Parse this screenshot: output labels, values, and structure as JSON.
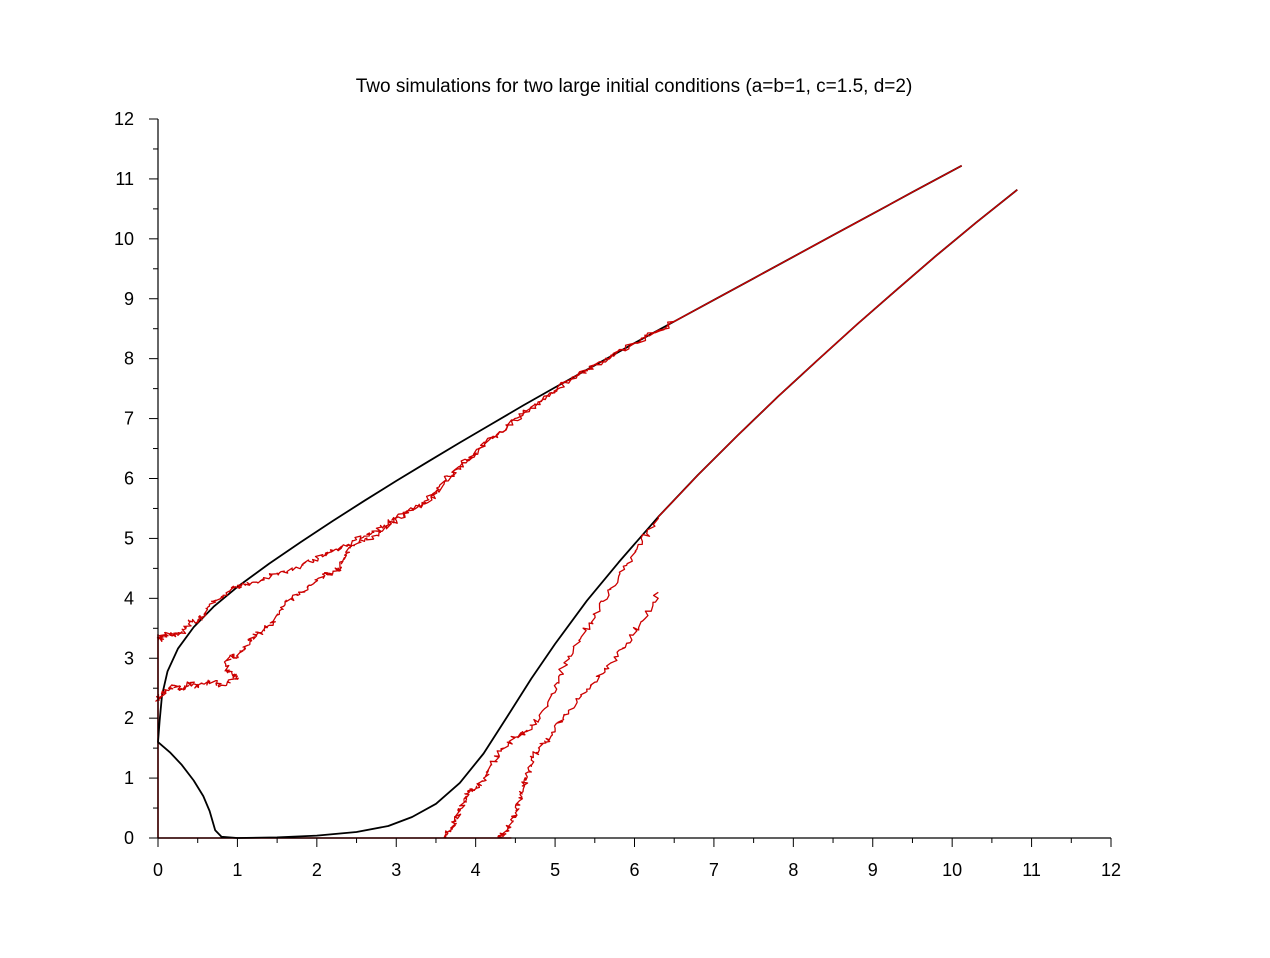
{
  "chart_data": {
    "type": "line",
    "title": "Two simulations for two  large initial conditions (a=b=1, c=1.5, d=2)",
    "xlabel": "",
    "ylabel": "",
    "xlim": [
      0,
      12
    ],
    "ylim": [
      0,
      12
    ],
    "x_ticks": [
      "0",
      "1",
      "2",
      "3",
      "4",
      "5",
      "6",
      "7",
      "8",
      "9",
      "10",
      "11",
      "12"
    ],
    "y_ticks": [
      "0",
      "1",
      "2",
      "3",
      "4",
      "5",
      "6",
      "7",
      "8",
      "9",
      "10",
      "11",
      "12"
    ],
    "grid": false,
    "legend": "none",
    "colors": {
      "deterministic": "#000000",
      "stochastic": "#cc0000"
    },
    "series": [
      {
        "kind": "deterministic",
        "x": [
          10.12,
          9.5,
          9.0,
          8.5,
          8.0,
          7.5,
          7.0,
          6.5,
          6.0,
          5.5,
          5.0,
          4.6,
          4.2,
          3.8,
          3.4,
          3.0,
          2.6,
          2.2,
          1.8,
          1.4,
          1.0,
          0.7,
          0.45,
          0.25,
          0.12,
          0.05,
          0.02,
          0.0,
          0.15,
          0.3,
          0.45,
          0.57,
          0.65,
          0.72,
          0.8,
          1.0
        ],
        "y": [
          11.22,
          10.78,
          10.42,
          10.06,
          9.7,
          9.34,
          8.98,
          8.62,
          8.26,
          7.89,
          7.52,
          7.22,
          6.91,
          6.6,
          6.28,
          5.96,
          5.63,
          5.29,
          4.94,
          4.58,
          4.19,
          3.86,
          3.52,
          3.16,
          2.78,
          2.38,
          1.95,
          1.6,
          1.43,
          1.22,
          0.96,
          0.7,
          0.45,
          0.13,
          0.02,
          0.0
        ]
      },
      {
        "kind": "deterministic",
        "x": [
          10.82,
          10.3,
          9.8,
          9.3,
          8.8,
          8.3,
          7.8,
          7.3,
          6.8,
          6.3,
          5.8,
          5.4,
          5.0,
          4.7,
          4.4,
          4.1,
          3.8,
          3.5,
          3.2,
          2.9,
          2.5,
          2.0,
          1.5,
          1.0
        ],
        "y": [
          10.82,
          10.27,
          9.72,
          9.15,
          8.57,
          7.97,
          7.36,
          6.72,
          6.06,
          5.36,
          4.6,
          3.96,
          3.24,
          2.66,
          2.03,
          1.41,
          0.92,
          0.57,
          0.35,
          0.2,
          0.1,
          0.04,
          0.01,
          0.0
        ]
      },
      {
        "kind": "stochastic",
        "x": [
          10.12,
          9.5,
          9.0,
          8.5,
          8.0,
          7.5,
          7.0,
          6.5,
          6.0,
          5.5,
          5.2,
          4.9,
          4.6,
          4.3,
          4.05,
          3.8,
          3.6,
          3.4,
          3.2,
          3.0,
          2.8,
          2.6,
          2.4,
          2.25,
          2.1,
          1.9,
          1.7,
          1.5,
          1.3,
          1.1,
          0.95,
          0.82,
          0.7,
          0.6,
          0.5,
          0.4,
          0.3,
          0.2,
          0.1,
          0.05,
          0.0
        ],
        "y": [
          11.22,
          10.78,
          10.42,
          10.06,
          9.7,
          9.34,
          8.98,
          8.62,
          8.26,
          7.9,
          7.65,
          7.38,
          7.08,
          6.78,
          6.5,
          6.2,
          5.95,
          5.65,
          5.5,
          5.3,
          5.1,
          4.95,
          4.9,
          4.82,
          4.72,
          4.62,
          4.48,
          4.42,
          4.3,
          4.22,
          4.2,
          4.05,
          3.95,
          3.72,
          3.62,
          3.6,
          3.42,
          3.38,
          3.4,
          3.35,
          3.3
        ]
      },
      {
        "kind": "stochastic",
        "x": [
          6.5,
          6.0,
          5.5,
          5.2,
          4.9,
          4.6,
          4.3,
          4.05,
          3.8,
          3.6,
          3.4,
          3.2,
          3.0,
          2.85,
          2.7,
          2.5,
          2.35,
          2.3,
          2.2,
          2.1,
          1.9,
          1.75,
          1.6,
          1.5,
          1.4,
          1.3,
          1.2,
          1.1,
          1.0,
          0.9,
          0.85,
          0.95,
          1.0,
          0.8,
          0.65,
          0.5,
          0.4,
          0.3,
          0.2,
          0.1,
          0.05,
          0.0
        ],
        "y": [
          8.62,
          8.26,
          7.9,
          7.65,
          7.38,
          7.08,
          6.78,
          6.5,
          6.2,
          5.9,
          5.6,
          5.48,
          5.35,
          5.22,
          5.1,
          4.98,
          4.72,
          4.5,
          4.42,
          4.38,
          4.22,
          4.05,
          3.95,
          3.72,
          3.55,
          3.42,
          3.35,
          3.2,
          3.05,
          3.02,
          2.8,
          2.72,
          2.65,
          2.55,
          2.62,
          2.52,
          2.58,
          2.48,
          2.55,
          2.45,
          2.38,
          2.3
        ]
      },
      {
        "kind": "stochastic",
        "x": [
          10.82,
          10.3,
          9.8,
          9.3,
          8.8,
          8.3,
          7.8,
          7.3,
          6.8,
          6.3,
          6.1,
          5.9,
          5.7,
          5.5,
          5.3,
          5.1,
          4.95,
          4.8,
          4.65,
          4.5,
          4.35,
          4.2,
          4.1,
          4.0,
          3.9,
          3.85,
          3.8,
          3.75,
          3.7,
          3.65,
          3.6
        ],
        "y": [
          10.82,
          10.27,
          9.72,
          9.15,
          8.57,
          7.97,
          7.36,
          6.72,
          6.06,
          5.36,
          4.95,
          4.55,
          4.15,
          3.72,
          3.3,
          2.85,
          2.4,
          1.98,
          1.78,
          1.68,
          1.5,
          1.22,
          0.95,
          0.82,
          0.78,
          0.62,
          0.45,
          0.3,
          0.18,
          0.08,
          0.0
        ]
      },
      {
        "kind": "stochastic",
        "x": [
          6.3,
          6.1,
          5.9,
          5.7,
          5.5,
          5.3,
          5.1,
          4.95,
          4.8,
          4.7,
          4.65,
          4.6,
          4.55,
          4.5,
          4.45,
          4.4,
          4.35,
          4.3
        ],
        "y": [
          4.1,
          3.62,
          3.25,
          2.92,
          2.6,
          2.32,
          2.0,
          1.7,
          1.5,
          1.3,
          1.02,
          0.82,
          0.62,
          0.42,
          0.25,
          0.14,
          0.06,
          0.0
        ]
      }
    ],
    "axis_segments": [
      {
        "kind": "stochastic",
        "axis": "y",
        "from": 0,
        "to": 3.4
      },
      {
        "kind": "stochastic",
        "axis": "x",
        "from": 0,
        "to": 4.45
      }
    ]
  }
}
